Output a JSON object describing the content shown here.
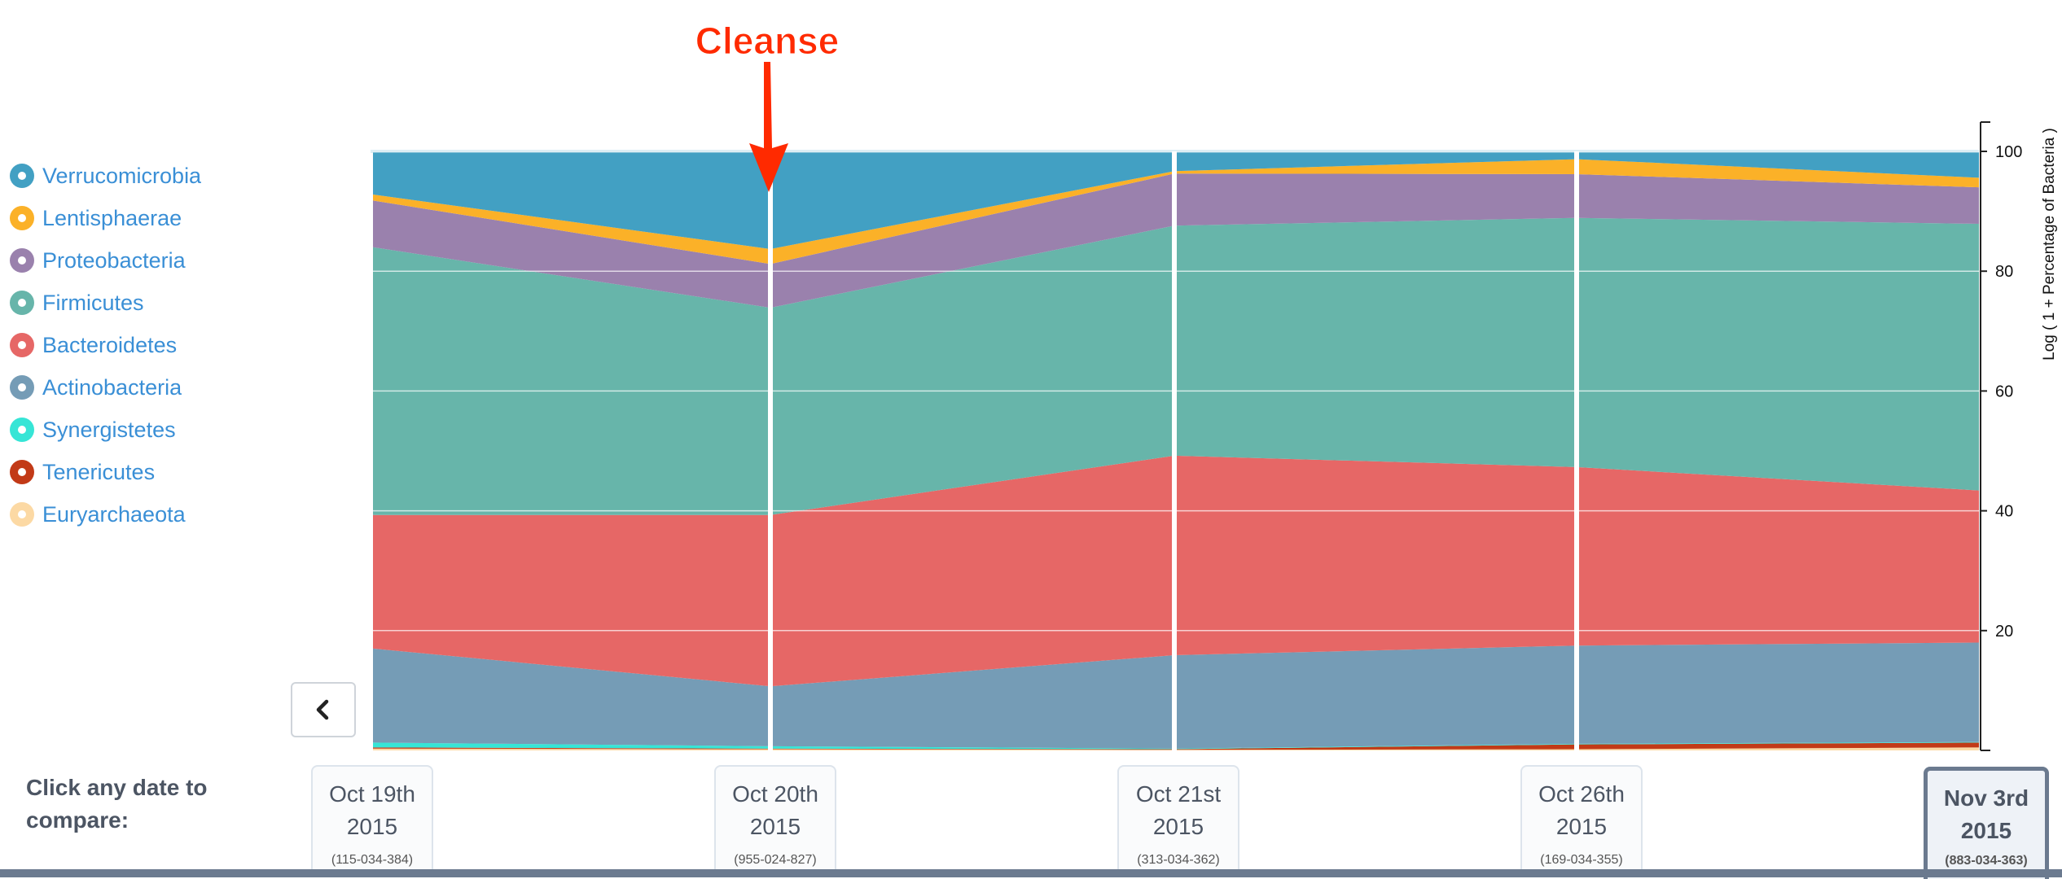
{
  "annotation": {
    "label": "Cleanse",
    "color": "#ff2a00"
  },
  "legend": [
    {
      "name": "Verrucomicrobia",
      "color": "#42a0c3"
    },
    {
      "name": "Lentisphaerae",
      "color": "#fbb128"
    },
    {
      "name": "Proteobacteria",
      "color": "#9a81ad"
    },
    {
      "name": "Firmicutes",
      "color": "#67b5aa"
    },
    {
      "name": "Bacteroidetes",
      "color": "#e66766"
    },
    {
      "name": "Actinobacteria",
      "color": "#759cb6"
    },
    {
      "name": "Synergistetes",
      "color": "#36e5d6"
    },
    {
      "name": "Tenericutes",
      "color": "#c23a17"
    },
    {
      "name": "Euryarchaeota",
      "color": "#fcd9a4"
    }
  ],
  "prompt": "Click any date to compare:",
  "dates": [
    {
      "line1": "Oct 19th",
      "line2": "2015",
      "sample": "(115-034-384)",
      "active": false
    },
    {
      "line1": "Oct 20th",
      "line2": "2015",
      "sample": "(955-024-827)",
      "active": false
    },
    {
      "line1": "Oct 21st",
      "line2": "2015",
      "sample": "(313-034-362)",
      "active": false
    },
    {
      "line1": "Oct 26th",
      "line2": "2015",
      "sample": "(169-034-355)",
      "active": false
    },
    {
      "line1": "Nov 3rd",
      "line2": "2015",
      "sample": "(883-034-363)",
      "active": true
    }
  ],
  "back_icon": "chevron-left-icon",
  "chart_data": {
    "type": "area",
    "stacked": true,
    "ylabel": "Log ( 1 + Percentage of Bacteria )",
    "ylim": [
      0,
      100
    ],
    "yticks": [
      20,
      40,
      60,
      80,
      100
    ],
    "grid": true,
    "categories": [
      "Oct 19th 2015",
      "Oct 20th 2015",
      "Oct 21st 2015",
      "Oct 26th 2015",
      "Nov 3rd 2015"
    ],
    "annotated_category": "Oct 20th 2015",
    "series": [
      {
        "name": "Euryarchaeota",
        "color": "#fcd9a4",
        "values": [
          0.3,
          0.2,
          0.1,
          0.2,
          0.5
        ]
      },
      {
        "name": "Tenericutes",
        "color": "#c23a17",
        "values": [
          0.2,
          0.1,
          0.1,
          0.8,
          0.8
        ]
      },
      {
        "name": "Synergistetes",
        "color": "#36e5d6",
        "values": [
          0.8,
          0.4,
          0.1,
          0.1,
          0.1
        ]
      },
      {
        "name": "Actinobacteria",
        "color": "#759cb6",
        "values": [
          15.7,
          10.0,
          15.6,
          16.4,
          16.6
        ]
      },
      {
        "name": "Bacteroidetes",
        "color": "#e66766",
        "values": [
          22.3,
          28.6,
          33.3,
          29.8,
          25.4
        ]
      },
      {
        "name": "Firmicutes",
        "color": "#67b5aa",
        "values": [
          44.7,
          34.6,
          38.4,
          41.6,
          44.5
        ]
      },
      {
        "name": "Proteobacteria",
        "color": "#9a81ad",
        "values": [
          7.8,
          7.3,
          8.7,
          7.3,
          6.1
        ]
      },
      {
        "name": "Lentisphaerae",
        "color": "#fbb128",
        "values": [
          1.0,
          2.5,
          0.4,
          2.5,
          1.6
        ]
      },
      {
        "name": "Verrucomicrobia",
        "color": "#42a0c3",
        "values": [
          7.2,
          16.3,
          3.3,
          1.3,
          4.4
        ]
      }
    ]
  }
}
